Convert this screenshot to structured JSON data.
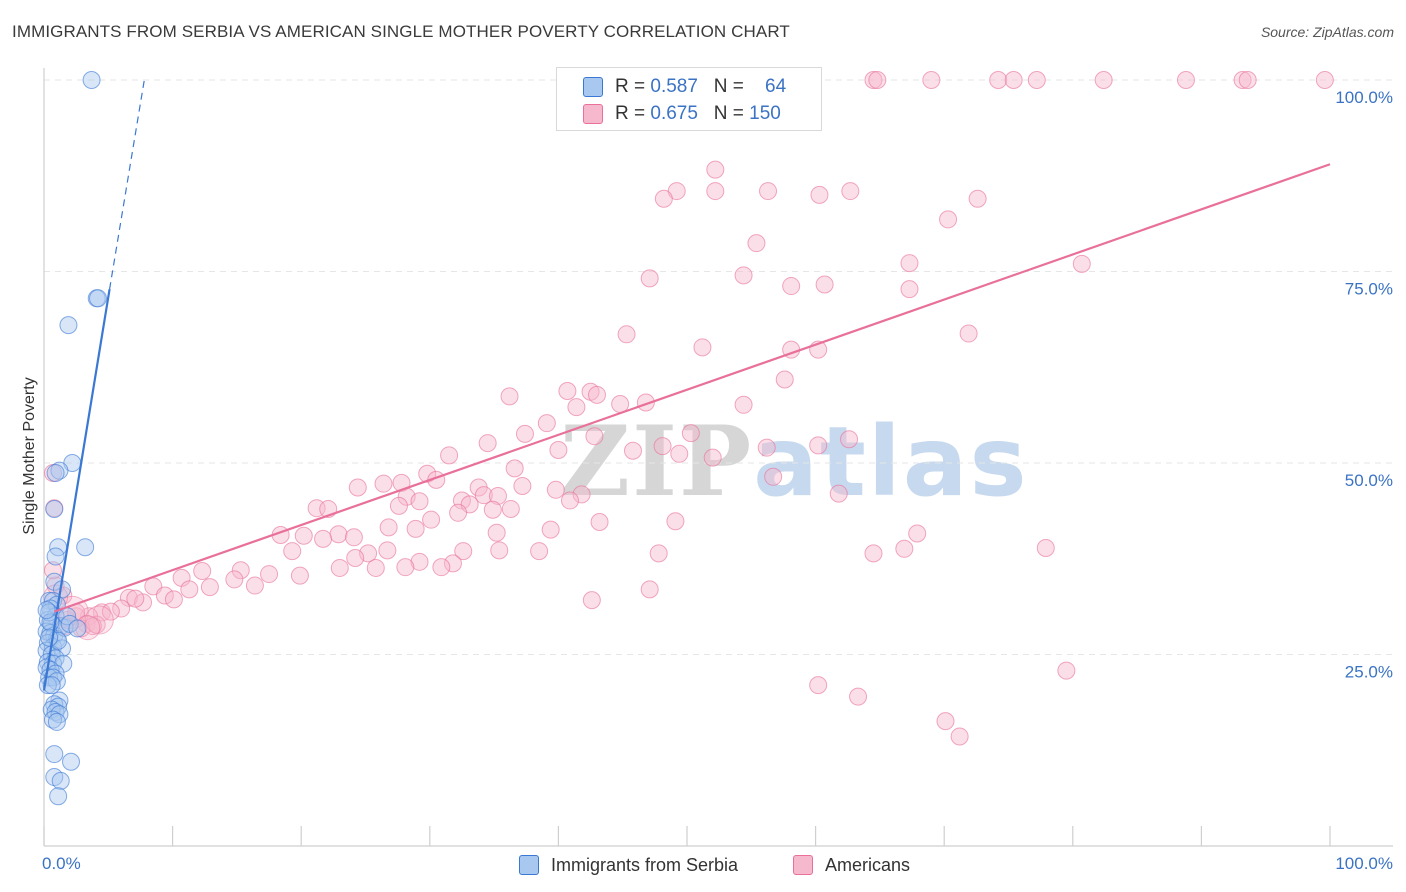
{
  "title": "IMMIGRANTS FROM SERBIA VS AMERICAN SINGLE MOTHER POVERTY CORRELATION CHART",
  "source": "Source: ZipAtlas.com",
  "watermark": {
    "part1": "ZIP",
    "part2": "atlas"
  },
  "legend": {
    "rows": [
      {
        "r_label": "R =",
        "r_value": "0.587",
        "n_label": "N =",
        "n_value": "64"
      },
      {
        "r_label": "R =",
        "r_value": "0.675",
        "n_label": "N =",
        "n_value": "150"
      }
    ]
  },
  "bottom_legend": {
    "series1": "Immigrants from Serbia",
    "series2": "Americans"
  },
  "colors": {
    "blue": "#3a78d4",
    "blue_fill": "#a9c8f0",
    "pink": "#e8709a",
    "pink_fill": "#f6b8cc",
    "axis_tick": "#3b73c4",
    "grid": "#e6e6e6"
  },
  "chart_data": {
    "type": "scatter",
    "title": "IMMIGRANTS FROM SERBIA VS AMERICAN SINGLE MOTHER POVERTY CORRELATION CHART",
    "xlabel": "",
    "ylabel": "Single Mother Poverty",
    "xlim": [
      0,
      100
    ],
    "ylim": [
      0,
      103
    ],
    "x_tick_labels": [
      "0.0%",
      "100.0%"
    ],
    "y_ticks": [
      25,
      50,
      75,
      100
    ],
    "y_tick_labels": [
      "25.0%",
      "50.0%",
      "75.0%",
      "100.0%"
    ],
    "grid": true,
    "legend_position": "top-center",
    "series": [
      {
        "name": "Immigrants from Serbia",
        "color": "#3a78d4",
        "fill": "#a9c8f0",
        "r": 0.587,
        "n": 64,
        "trend": {
          "x0": 0.0,
          "y0": 20.3,
          "x1": 5.1,
          "y1": 72.7,
          "dashed_to_x": 7.8,
          "dashed_to_y": 100.0
        },
        "points": [
          [
            3.7,
            100
          ],
          [
            4.1,
            71.5
          ],
          [
            4.2,
            71.5
          ],
          [
            1.9,
            68
          ],
          [
            2.2,
            50
          ],
          [
            1.2,
            49
          ],
          [
            0.9,
            48.7
          ],
          [
            0.8,
            44
          ],
          [
            1.1,
            39
          ],
          [
            3.2,
            39
          ],
          [
            0.9,
            37.8
          ],
          [
            0.8,
            34.5
          ],
          [
            1.4,
            33.5
          ],
          [
            0.4,
            32
          ],
          [
            0.7,
            32
          ],
          [
            1.0,
            31.5
          ],
          [
            0.5,
            31
          ],
          [
            0.9,
            30
          ],
          [
            0.3,
            29.5
          ],
          [
            0.6,
            29
          ],
          [
            1.3,
            28.7
          ],
          [
            0.2,
            28
          ],
          [
            0.5,
            27.8
          ],
          [
            0.8,
            27.5
          ],
          [
            1.0,
            27
          ],
          [
            0.3,
            26.5
          ],
          [
            0.7,
            26
          ],
          [
            1.4,
            25.8
          ],
          [
            0.2,
            25.5
          ],
          [
            0.6,
            25
          ],
          [
            0.9,
            24.5
          ],
          [
            0.3,
            24
          ],
          [
            0.7,
            23.8
          ],
          [
            1.5,
            23.8
          ],
          [
            0.2,
            23.3
          ],
          [
            0.5,
            23
          ],
          [
            0.9,
            22.5
          ],
          [
            0.4,
            22
          ],
          [
            0.7,
            22
          ],
          [
            1.0,
            21.5
          ],
          [
            0.3,
            21
          ],
          [
            0.6,
            21
          ],
          [
            1.2,
            19
          ],
          [
            0.8,
            18.5
          ],
          [
            1.1,
            18.2
          ],
          [
            0.6,
            17.8
          ],
          [
            0.9,
            17.5
          ],
          [
            1.2,
            17.2
          ],
          [
            0.7,
            16.5
          ],
          [
            1.0,
            16.2
          ],
          [
            0.8,
            12
          ],
          [
            2.1,
            11
          ],
          [
            0.8,
            9
          ],
          [
            1.3,
            8.5
          ],
          [
            1.1,
            6.5
          ],
          [
            0.4,
            30.5
          ],
          [
            1.6,
            28.5
          ],
          [
            0.5,
            29.2
          ],
          [
            1.8,
            30
          ],
          [
            2.0,
            29
          ],
          [
            0.2,
            30.8
          ],
          [
            1.1,
            26.8
          ],
          [
            0.4,
            27.2
          ],
          [
            2.6,
            28.4
          ]
        ]
      },
      {
        "name": "Americans",
        "color": "#e8709a",
        "fill": "#f6b8cc",
        "r": 0.675,
        "n": 150,
        "trend": {
          "x0": 0.8,
          "y0": 30.6,
          "x1": 100.0,
          "y1": 89.0
        },
        "points": [
          [
            54,
            100
          ],
          [
            54.5,
            100
          ],
          [
            64.5,
            100
          ],
          [
            64.8,
            100
          ],
          [
            69,
            100
          ],
          [
            74.2,
            100
          ],
          [
            75.4,
            100
          ],
          [
            77.2,
            100
          ],
          [
            82.4,
            100
          ],
          [
            88.8,
            100
          ],
          [
            93.2,
            100
          ],
          [
            93.6,
            100
          ],
          [
            99.6,
            100
          ],
          [
            52.2,
            88.3
          ],
          [
            49.2,
            85.5
          ],
          [
            56.3,
            85.5
          ],
          [
            62.7,
            85.5
          ],
          [
            52.2,
            85.5
          ],
          [
            60.3,
            85
          ],
          [
            48.2,
            84.5
          ],
          [
            72.6,
            84.5
          ],
          [
            70.3,
            81.8
          ],
          [
            55.4,
            78.7
          ],
          [
            67.3,
            76.1
          ],
          [
            80.7,
            76
          ],
          [
            47.1,
            74.1
          ],
          [
            54.4,
            74.5
          ],
          [
            58.1,
            73.1
          ],
          [
            60.7,
            73.3
          ],
          [
            67.3,
            72.7
          ],
          [
            71.9,
            66.9
          ],
          [
            45.3,
            66.8
          ],
          [
            51.2,
            65.1
          ],
          [
            58.1,
            64.8
          ],
          [
            60.2,
            64.8
          ],
          [
            57.6,
            60.9
          ],
          [
            40.7,
            59.4
          ],
          [
            42.5,
            59.3
          ],
          [
            36.2,
            58.7
          ],
          [
            43,
            58.9
          ],
          [
            41.4,
            57.3
          ],
          [
            46.8,
            57.9
          ],
          [
            44.8,
            57.7
          ],
          [
            54.4,
            57.6
          ],
          [
            39.1,
            55.2
          ],
          [
            37.4,
            53.8
          ],
          [
            42.8,
            53.5
          ],
          [
            50.3,
            53.9
          ],
          [
            34.5,
            52.6
          ],
          [
            48.1,
            52.2
          ],
          [
            60.2,
            52.3
          ],
          [
            62.6,
            53.1
          ],
          [
            56.2,
            52
          ],
          [
            45.8,
            51.6
          ],
          [
            40,
            51.7
          ],
          [
            49.4,
            51.2
          ],
          [
            52,
            50.7
          ],
          [
            31.5,
            51
          ],
          [
            36.6,
            49.3
          ],
          [
            29.8,
            48.6
          ],
          [
            30.5,
            47.8
          ],
          [
            27.8,
            47.4
          ],
          [
            26.4,
            47.3
          ],
          [
            33.8,
            46.8
          ],
          [
            39.8,
            46.5
          ],
          [
            41.8,
            45.9
          ],
          [
            37.2,
            47
          ],
          [
            24.4,
            46.8
          ],
          [
            28.2,
            45.6
          ],
          [
            34.2,
            45.8
          ],
          [
            35.3,
            45.7
          ],
          [
            32.5,
            45.1
          ],
          [
            29.2,
            45
          ],
          [
            40.9,
            45.1
          ],
          [
            33.1,
            44.6
          ],
          [
            27.6,
            44.4
          ],
          [
            61.8,
            46
          ],
          [
            56.7,
            48.2
          ],
          [
            36.3,
            44
          ],
          [
            21.2,
            44.1
          ],
          [
            22.1,
            44
          ],
          [
            32.2,
            43.5
          ],
          [
            30.1,
            42.6
          ],
          [
            34.9,
            43.9
          ],
          [
            43.2,
            42.3
          ],
          [
            39.4,
            41.3
          ],
          [
            49.1,
            42.4
          ],
          [
            28.9,
            41.4
          ],
          [
            26.8,
            41.6
          ],
          [
            35.2,
            40.9
          ],
          [
            22.9,
            40.7
          ],
          [
            20.2,
            40.5
          ],
          [
            24.1,
            40.3
          ],
          [
            18.4,
            40.6
          ],
          [
            21.7,
            40.1
          ],
          [
            19.3,
            38.5
          ],
          [
            25.2,
            38.2
          ],
          [
            26.7,
            38.6
          ],
          [
            32.6,
            38.5
          ],
          [
            29.2,
            37.1
          ],
          [
            35.4,
            38.6
          ],
          [
            31.8,
            36.9
          ],
          [
            38.5,
            38.5
          ],
          [
            47.8,
            38.2
          ],
          [
            64.5,
            38.2
          ],
          [
            67.9,
            40.8
          ],
          [
            66.9,
            38.8
          ],
          [
            77.9,
            38.9
          ],
          [
            24.2,
            37.6
          ],
          [
            25.8,
            36.3
          ],
          [
            28.1,
            36.4
          ],
          [
            23,
            36.3
          ],
          [
            30.9,
            36.4
          ],
          [
            15.3,
            36
          ],
          [
            12.3,
            35.9
          ],
          [
            17.5,
            35.5
          ],
          [
            14.8,
            34.8
          ],
          [
            19.9,
            35.3
          ],
          [
            10.7,
            35
          ],
          [
            16.4,
            34
          ],
          [
            12.9,
            33.8
          ],
          [
            8.5,
            33.9
          ],
          [
            11.3,
            33.5
          ],
          [
            9.4,
            32.7
          ],
          [
            6.6,
            32.4
          ],
          [
            7.7,
            31.8
          ],
          [
            10.1,
            32.2
          ],
          [
            6,
            31
          ],
          [
            4.5,
            30.5
          ],
          [
            3.5,
            30
          ],
          [
            2.5,
            30
          ],
          [
            1.8,
            29.5
          ],
          [
            3.3,
            29
          ],
          [
            4.1,
            28.9
          ],
          [
            1.6,
            28.7
          ],
          [
            5.2,
            30.6
          ],
          [
            2.9,
            28.4
          ],
          [
            1.5,
            32.7
          ],
          [
            0.9,
            34
          ],
          [
            0.7,
            36
          ],
          [
            0.8,
            44.1
          ],
          [
            0.7,
            48.7
          ],
          [
            47.1,
            33.5
          ],
          [
            42.6,
            32.1
          ],
          [
            60.2,
            21
          ],
          [
            63.3,
            19.5
          ],
          [
            70.1,
            16.3
          ],
          [
            71.2,
            14.3
          ],
          [
            79.5,
            22.9
          ],
          [
            2.5,
            30.5
          ],
          [
            3.8,
            28.7
          ],
          [
            7.1,
            32.3
          ]
        ]
      }
    ]
  }
}
